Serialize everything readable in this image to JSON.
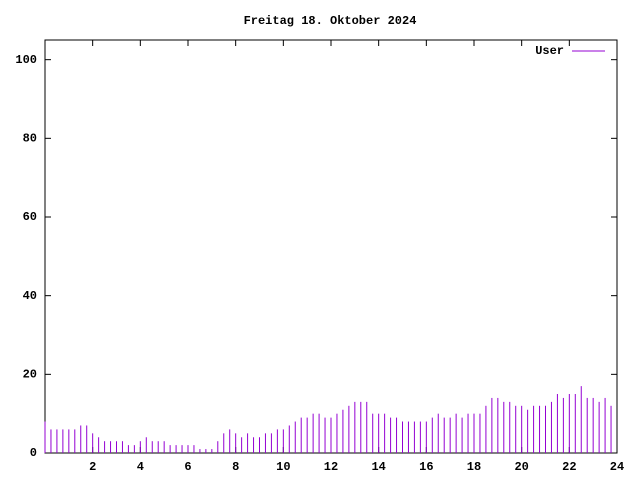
{
  "chart_data": {
    "type": "impulses",
    "title": "Freitag 18. Oktober 2024",
    "x": [
      0,
      0.25,
      0.5,
      0.75,
      1,
      1.25,
      1.5,
      1.75,
      2,
      2.25,
      2.5,
      2.75,
      3,
      3.25,
      3.5,
      3.75,
      4,
      4.25,
      4.5,
      4.75,
      5,
      5.25,
      5.5,
      5.75,
      6,
      6.25,
      6.5,
      6.75,
      7,
      7.25,
      7.5,
      7.75,
      8,
      8.25,
      8.5,
      8.75,
      9,
      9.25,
      9.5,
      9.75,
      10,
      10.25,
      10.5,
      10.75,
      11,
      11.25,
      11.5,
      11.75,
      12,
      12.25,
      12.5,
      12.75,
      13,
      13.25,
      13.5,
      13.75,
      14,
      14.25,
      14.5,
      14.75,
      15,
      15.25,
      15.5,
      15.75,
      16,
      16.25,
      16.5,
      16.75,
      17,
      17.25,
      17.5,
      17.75,
      18,
      18.25,
      18.5,
      18.75,
      19,
      19.25,
      19.5,
      19.75,
      20,
      20.25,
      20.5,
      20.75,
      21,
      21.25,
      21.5,
      21.75,
      22,
      22.25,
      22.5,
      22.75,
      23,
      23.25,
      23.5,
      23.75
    ],
    "series": [
      {
        "name": "User",
        "color": "#9400d3",
        "values": [
          8,
          6,
          6,
          6,
          6,
          6,
          7,
          7,
          5,
          4,
          3,
          3,
          3,
          3,
          2,
          2,
          3,
          4,
          3,
          3,
          3,
          2,
          2,
          2,
          2,
          2,
          1,
          1,
          1,
          3,
          5,
          6,
          5,
          4,
          5,
          4,
          4,
          5,
          5,
          6,
          6,
          7,
          8,
          9,
          9,
          10,
          10,
          9,
          9,
          10,
          11,
          12,
          13,
          13,
          13,
          10,
          10,
          10,
          9,
          9,
          8,
          8,
          8,
          8,
          8,
          9,
          10,
          9,
          9,
          10,
          9,
          10,
          10,
          10,
          12,
          14,
          14,
          13,
          13,
          12,
          12,
          11,
          12,
          12,
          12,
          13,
          15,
          14,
          15,
          15,
          17,
          14,
          14,
          13,
          14,
          12
        ]
      }
    ],
    "xlim": [
      0,
      24
    ],
    "xticks": [
      2,
      4,
      6,
      8,
      10,
      12,
      14,
      16,
      18,
      20,
      22,
      24
    ],
    "ylim": [
      0,
      105
    ],
    "yticks": [
      0,
      20,
      40,
      60,
      80,
      100
    ],
    "grid": false,
    "legend": "top-right"
  }
}
